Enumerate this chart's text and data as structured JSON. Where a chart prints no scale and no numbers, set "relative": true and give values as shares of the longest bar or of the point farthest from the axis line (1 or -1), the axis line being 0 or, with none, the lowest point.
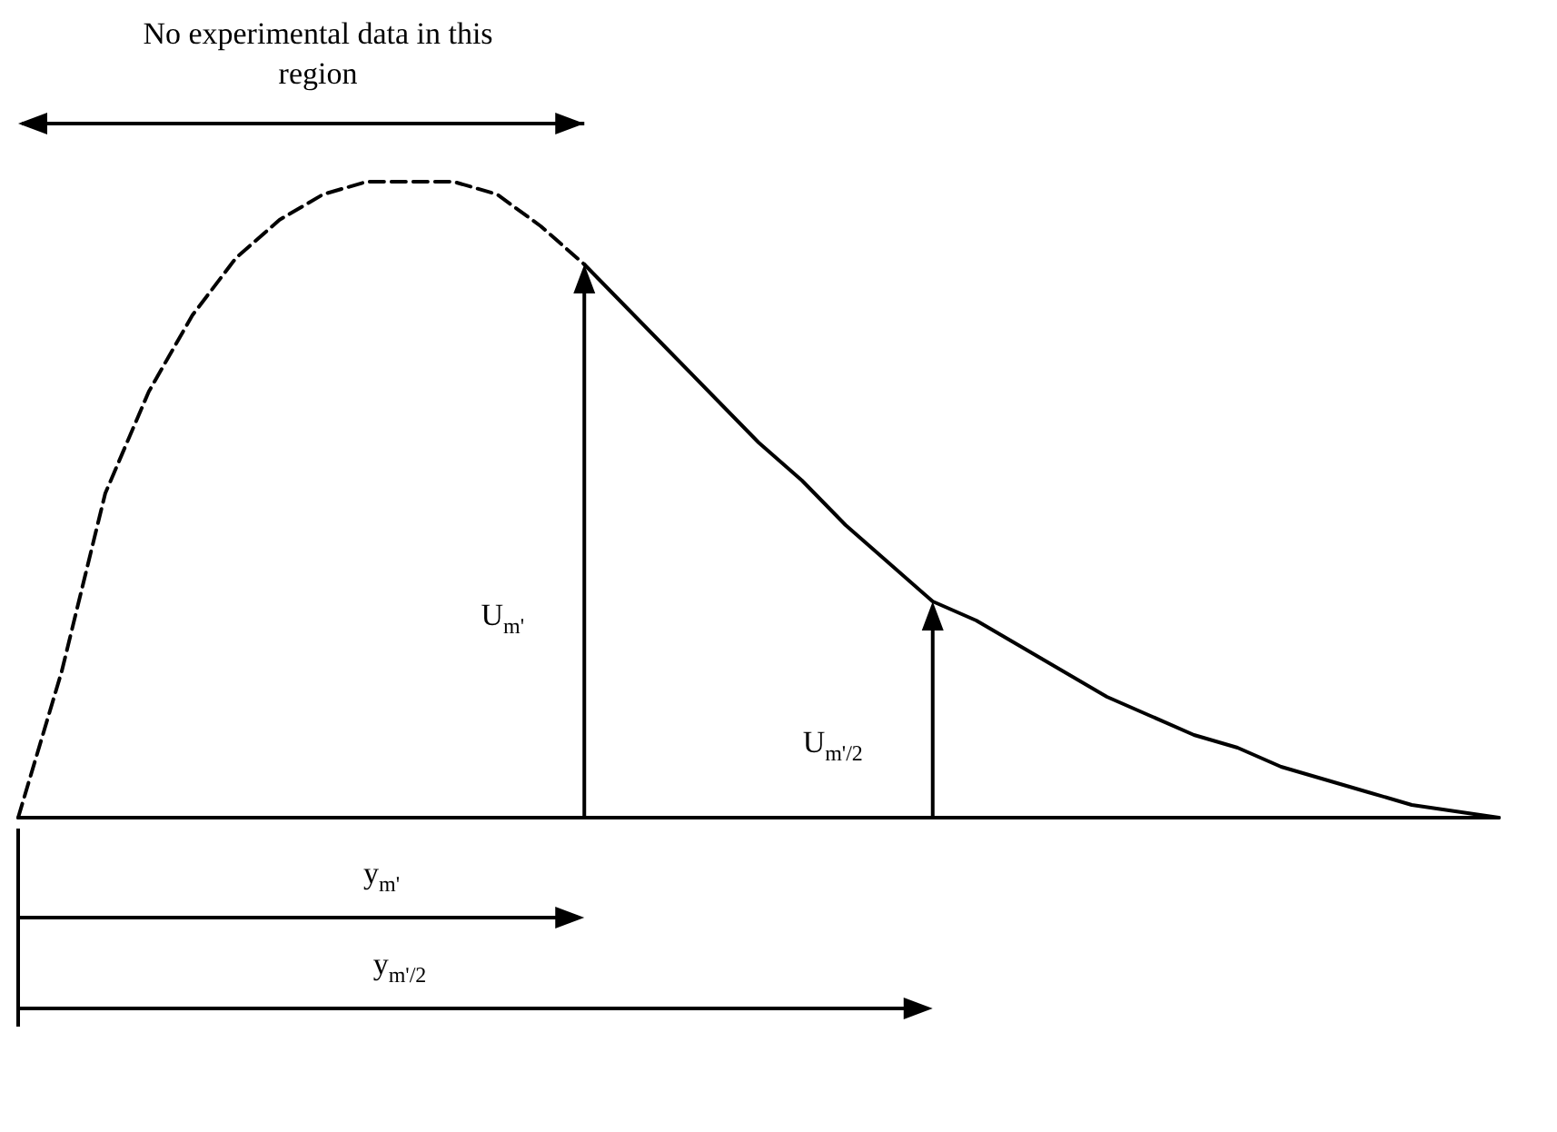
{
  "chart_data": {
    "type": "line",
    "relative": true,
    "marker": "none",
    "categories": [
      null,
      null,
      null,
      null,
      null,
      null,
      null,
      null,
      null,
      null,
      null,
      null,
      null,
      null,
      null,
      null,
      null,
      null,
      null,
      null,
      null,
      null,
      null,
      null,
      null,
      null,
      null,
      null,
      null,
      null,
      null,
      null,
      null,
      null,
      null
    ],
    "series": [
      {
        "color": "#000000",
        "line_style": "dashed",
        "values": [
          0,
          0.23,
          0.51,
          0.67,
          0.79,
          0.88,
          0.94,
          0.98,
          1.0,
          1.0,
          1.0,
          0.98,
          0.93,
          0.87,
          null,
          null,
          null,
          null,
          null,
          null,
          null,
          null,
          null,
          null,
          null,
          null,
          null,
          null,
          null,
          null,
          null,
          null,
          null,
          null,
          null
        ]
      },
      {
        "color": "#000000",
        "line_style": "solid",
        "values": [
          null,
          null,
          null,
          null,
          null,
          null,
          null,
          null,
          null,
          null,
          null,
          null,
          null,
          0.87,
          0.8,
          0.73,
          0.66,
          0.59,
          0.53,
          0.46,
          0.4,
          0.34,
          0.31,
          0.27,
          0.23,
          0.19,
          0.16,
          0.13,
          0.11,
          0.08,
          0.06,
          0.04,
          0.02,
          0.01,
          0
        ]
      }
    ],
    "annotations": [
      "No experimental data in this region",
      "U$_{m'}$",
      "U$_{m'/2}$",
      "y$_{m'}$",
      "y$_{m'/2}$"
    ]
  }
}
